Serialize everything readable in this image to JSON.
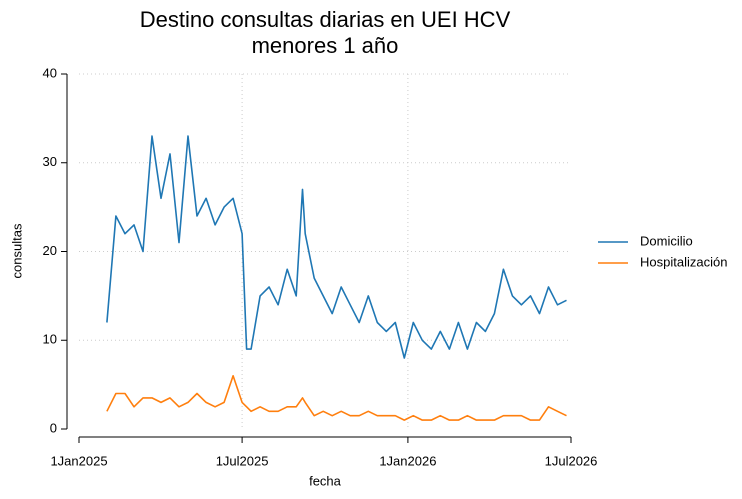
{
  "chart_data": {
    "type": "line",
    "title": [
      "Destino consultas diarias en UEI HCV",
      "menores 1 año"
    ],
    "x_label": "fecha",
    "y_label": "consultas",
    "x": [
      "2025-02-01",
      "2025-02-11",
      "2025-02-21",
      "2025-03-03",
      "2025-03-13",
      "2025-03-23",
      "2025-04-02",
      "2025-04-12",
      "2025-04-22",
      "2025-05-02",
      "2025-05-12",
      "2025-05-22",
      "2025-06-01",
      "2025-06-11",
      "2025-06-21",
      "2025-07-01",
      "2025-07-06",
      "2025-07-11",
      "2025-07-21",
      "2025-07-31",
      "2025-08-10",
      "2025-08-20",
      "2025-08-30",
      "2025-09-06",
      "2025-09-09",
      "2025-09-19",
      "2025-09-29",
      "2025-10-09",
      "2025-10-19",
      "2025-10-29",
      "2025-11-08",
      "2025-11-18",
      "2025-11-28",
      "2025-12-08",
      "2025-12-18",
      "2025-12-28",
      "2026-01-07",
      "2026-01-17",
      "2026-01-27",
      "2026-02-06",
      "2026-02-16",
      "2026-02-26",
      "2026-03-08",
      "2026-03-18",
      "2026-03-28",
      "2026-04-07",
      "2026-04-17",
      "2026-04-27",
      "2026-05-07",
      "2026-05-17",
      "2026-05-27",
      "2026-06-06",
      "2026-06-16",
      "2026-06-26"
    ],
    "series": [
      {
        "name": "Domicilio",
        "color": "#1f77b4",
        "values": [
          12,
          24,
          22,
          23,
          20,
          33,
          26,
          31,
          21,
          33,
          24,
          26,
          23,
          25,
          26,
          22,
          9,
          9,
          15,
          16,
          14,
          18,
          15,
          27,
          22,
          17,
          15,
          13,
          16,
          14,
          12,
          15,
          12,
          11,
          12,
          8,
          12,
          10,
          9,
          11,
          9,
          12,
          9,
          12,
          11,
          13,
          18,
          15,
          14,
          15,
          13,
          16,
          14,
          14.5
        ]
      },
      {
        "name": "Hospitalización",
        "color": "#ff7f0e",
        "values": [
          2,
          4,
          4,
          2.5,
          3.5,
          3.5,
          3,
          3.5,
          2.5,
          3,
          4,
          3,
          2.5,
          3,
          6,
          3,
          2.5,
          2,
          2.5,
          2,
          2,
          2.5,
          2.5,
          3.5,
          3,
          1.5,
          2,
          1.5,
          2,
          1.5,
          1.5,
          2,
          1.5,
          1.5,
          1.5,
          1,
          1.5,
          1,
          1,
          1.5,
          1,
          1,
          1.5,
          1,
          1,
          1,
          1.5,
          1.5,
          1.5,
          1,
          1,
          2.5,
          2,
          1.5
        ]
      }
    ],
    "xlim": [
      "2025-01-01",
      "2026-07-01"
    ],
    "xticks": [
      {
        "value": "2025-01-01",
        "label": "1Jan2025"
      },
      {
        "value": "2025-07-01",
        "label": "1Jul2025"
      },
      {
        "value": "2026-01-01",
        "label": "1Jan2026"
      },
      {
        "value": "2026-07-01",
        "label": "1Jul2026"
      }
    ],
    "ylim": [
      0,
      40
    ],
    "yticks": [
      0,
      10,
      20,
      30,
      40
    ],
    "grid": true,
    "legend": "right"
  }
}
